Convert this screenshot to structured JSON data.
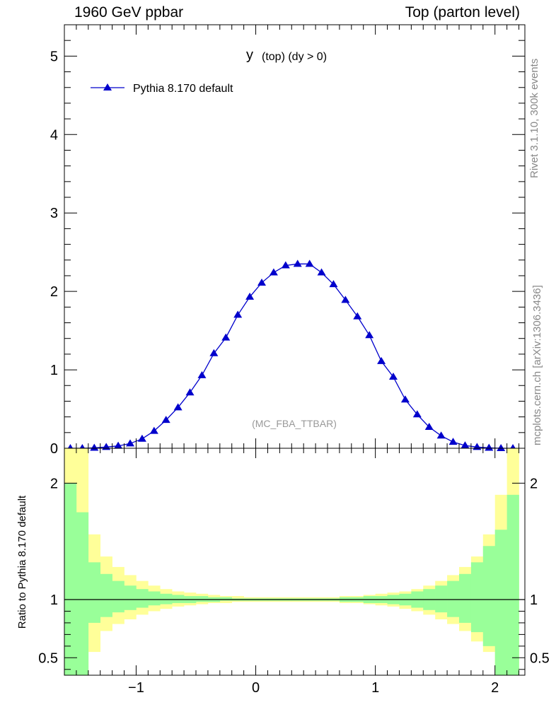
{
  "header": {
    "left": "1960 GeV ppbar",
    "right": "Top (parton level)"
  },
  "side_labels": {
    "rivet": "Rivet 3.1.10,  300k events",
    "mcplots": "mcplots.cern.ch [arXiv:1306.3436]"
  },
  "plot": {
    "title_main": "y",
    "title_sub": "(top) (dy > 0)",
    "watermark": "(MC_FBA_TTBAR)",
    "legend_label": "Pythia 8.170 default"
  },
  "ratio": {
    "ylabel": "Ratio to Pythia 8.170 default"
  },
  "colors": {
    "series": "#0000cc",
    "band_inner": "#99ff99",
    "band_outer": "#ffff99",
    "reference_line": "#000000"
  },
  "chart_data": [
    {
      "type": "line",
      "marker": "triangle",
      "xlim": [
        -1.6,
        2.25
      ],
      "ylim": [
        0,
        5.4
      ],
      "x_ticks": [
        -1,
        0,
        1,
        2
      ],
      "x_tick_labels": [
        "−1",
        "0",
        "1",
        "2"
      ],
      "y_ticks": [
        0,
        1,
        2,
        3,
        4,
        5
      ],
      "y_tick_labels": [
        "0",
        "1",
        "2",
        "3",
        "4",
        "5"
      ],
      "legend_position": "top-left",
      "series": [
        {
          "name": "Pythia 8.170 default",
          "x": [
            -1.55,
            -1.45,
            -1.35,
            -1.25,
            -1.15,
            -1.05,
            -0.95,
            -0.85,
            -0.75,
            -0.65,
            -0.55,
            -0.45,
            -0.35,
            -0.25,
            -0.15,
            -0.05,
            0.05,
            0.15,
            0.25,
            0.35,
            0.45,
            0.55,
            0.65,
            0.75,
            0.85,
            0.95,
            1.05,
            1.15,
            1.25,
            1.35,
            1.45,
            1.55,
            1.65,
            1.75,
            1.85,
            1.95,
            2.05,
            2.15
          ],
          "y": [
            0.0,
            0.0,
            0.005,
            0.015,
            0.03,
            0.06,
            0.12,
            0.22,
            0.36,
            0.52,
            0.71,
            0.93,
            1.21,
            1.41,
            1.7,
            1.93,
            2.11,
            2.24,
            2.33,
            2.35,
            2.35,
            2.24,
            2.09,
            1.89,
            1.68,
            1.44,
            1.11,
            0.91,
            0.62,
            0.43,
            0.27,
            0.16,
            0.08,
            0.035,
            0.015,
            0.005,
            0.0,
            0.0
          ]
        }
      ]
    },
    {
      "type": "area",
      "ylabel": "Ratio to Pythia 8.170 default",
      "xlim": [
        -1.6,
        2.25
      ],
      "ylim": [
        0.35,
        2.3
      ],
      "x_ticks": [
        -1,
        0,
        1,
        2
      ],
      "x_tick_labels": [
        "−1",
        "0",
        "1",
        "2"
      ],
      "y_ticks": [
        0.5,
        1,
        2
      ],
      "y_tick_labels": [
        "0.5",
        "1",
        "2"
      ],
      "bin_edges": [
        -1.6,
        -1.5,
        -1.4,
        -1.3,
        -1.2,
        -1.1,
        -1.0,
        -0.9,
        -0.8,
        -0.7,
        -0.6,
        -0.5,
        -0.4,
        -0.3,
        -0.2,
        -0.1,
        0.0,
        0.1,
        0.2,
        0.3,
        0.4,
        0.5,
        0.6,
        0.7,
        0.8,
        0.9,
        1.0,
        1.1,
        1.2,
        1.3,
        1.4,
        1.5,
        1.6,
        1.7,
        1.8,
        1.9,
        2.0,
        2.1,
        2.2
      ],
      "outer_band_upper": [
        2.35,
        2.35,
        1.56,
        1.37,
        1.28,
        1.21,
        1.16,
        1.12,
        1.09,
        1.07,
        1.06,
        1.05,
        1.04,
        1.03,
        1.03,
        1.02,
        1.02,
        1.02,
        1.02,
        1.02,
        1.02,
        1.02,
        1.02,
        1.03,
        1.03,
        1.04,
        1.05,
        1.06,
        1.07,
        1.09,
        1.12,
        1.16,
        1.21,
        1.28,
        1.37,
        1.56,
        1.9,
        2.35
      ],
      "outer_band_lower": [
        0.35,
        0.35,
        0.55,
        0.73,
        0.79,
        0.83,
        0.87,
        0.9,
        0.92,
        0.94,
        0.95,
        0.96,
        0.97,
        0.97,
        0.98,
        0.98,
        0.98,
        0.98,
        0.98,
        0.98,
        0.98,
        0.98,
        0.98,
        0.97,
        0.97,
        0.96,
        0.95,
        0.94,
        0.92,
        0.9,
        0.87,
        0.83,
        0.79,
        0.73,
        0.64,
        0.55,
        0.35,
        0.35
      ],
      "inner_band_upper": [
        2.0,
        1.75,
        1.32,
        1.22,
        1.16,
        1.12,
        1.09,
        1.07,
        1.05,
        1.04,
        1.03,
        1.03,
        1.02,
        1.02,
        1.01,
        1.01,
        1.01,
        1.01,
        1.01,
        1.01,
        1.01,
        1.01,
        1.01,
        1.02,
        1.02,
        1.03,
        1.03,
        1.04,
        1.05,
        1.07,
        1.09,
        1.12,
        1.16,
        1.22,
        1.32,
        1.46,
        1.6,
        1.9
      ],
      "inner_band_lower": [
        0.35,
        0.35,
        0.8,
        0.85,
        0.89,
        0.91,
        0.93,
        0.95,
        0.96,
        0.97,
        0.97,
        0.98,
        0.98,
        0.99,
        0.99,
        0.99,
        0.99,
        0.99,
        0.99,
        0.99,
        0.99,
        0.99,
        0.99,
        0.98,
        0.98,
        0.97,
        0.97,
        0.96,
        0.95,
        0.93,
        0.91,
        0.89,
        0.85,
        0.8,
        0.72,
        0.6,
        0.35,
        0.35
      ],
      "reference_line": 1.0
    }
  ]
}
